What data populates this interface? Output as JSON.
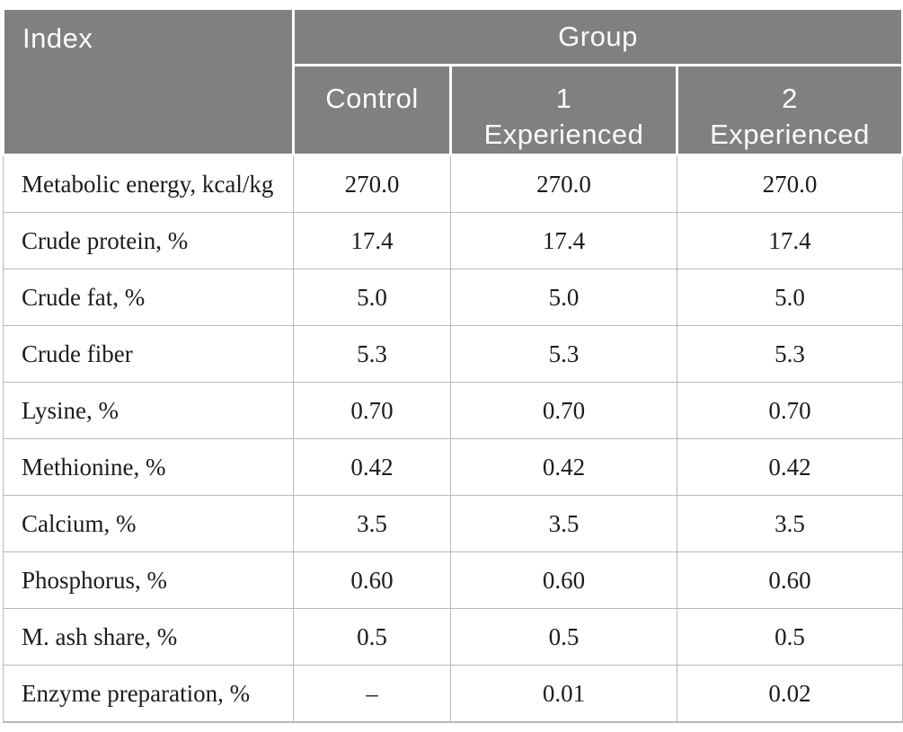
{
  "table": {
    "header": {
      "index_label": "Index",
      "group_label": "Group",
      "columns": [
        "Control",
        "1\nExperienced",
        "2\nExperienced"
      ]
    },
    "rows": [
      {
        "label": "Metabolic energy, kcal/kg",
        "values": [
          "270.0",
          "270.0",
          "270.0"
        ]
      },
      {
        "label": "Crude protein, %",
        "values": [
          "17.4",
          "17.4",
          "17.4"
        ]
      },
      {
        "label": "Crude fat, %",
        "values": [
          "5.0",
          "5.0",
          "5.0"
        ]
      },
      {
        "label": "Crude fiber",
        "values": [
          "5.3",
          "5.3",
          "5.3"
        ]
      },
      {
        "label": "Lysine, %",
        "values": [
          "0.70",
          "0.70",
          "0.70"
        ]
      },
      {
        "label": "Methionine, %",
        "values": [
          "0.42",
          "0.42",
          "0.42"
        ]
      },
      {
        "label": "Calcium, %",
        "values": [
          "3.5",
          "3.5",
          "3.5"
        ]
      },
      {
        "label": "Phosphorus, %",
        "values": [
          "0.60",
          "0.60",
          "0.60"
        ]
      },
      {
        "label": "M. ash share, %",
        "values": [
          "0.5",
          "0.5",
          "0.5"
        ]
      },
      {
        "label": "Enzyme preparation, %",
        "values": [
          "–",
          "0.01",
          "0.02"
        ]
      }
    ],
    "colors": {
      "header_bg": "#7f8180",
      "header_text": "#fbfbfb",
      "body_text": "#1c1c1c",
      "grid_line": "#b4b9b8"
    }
  }
}
